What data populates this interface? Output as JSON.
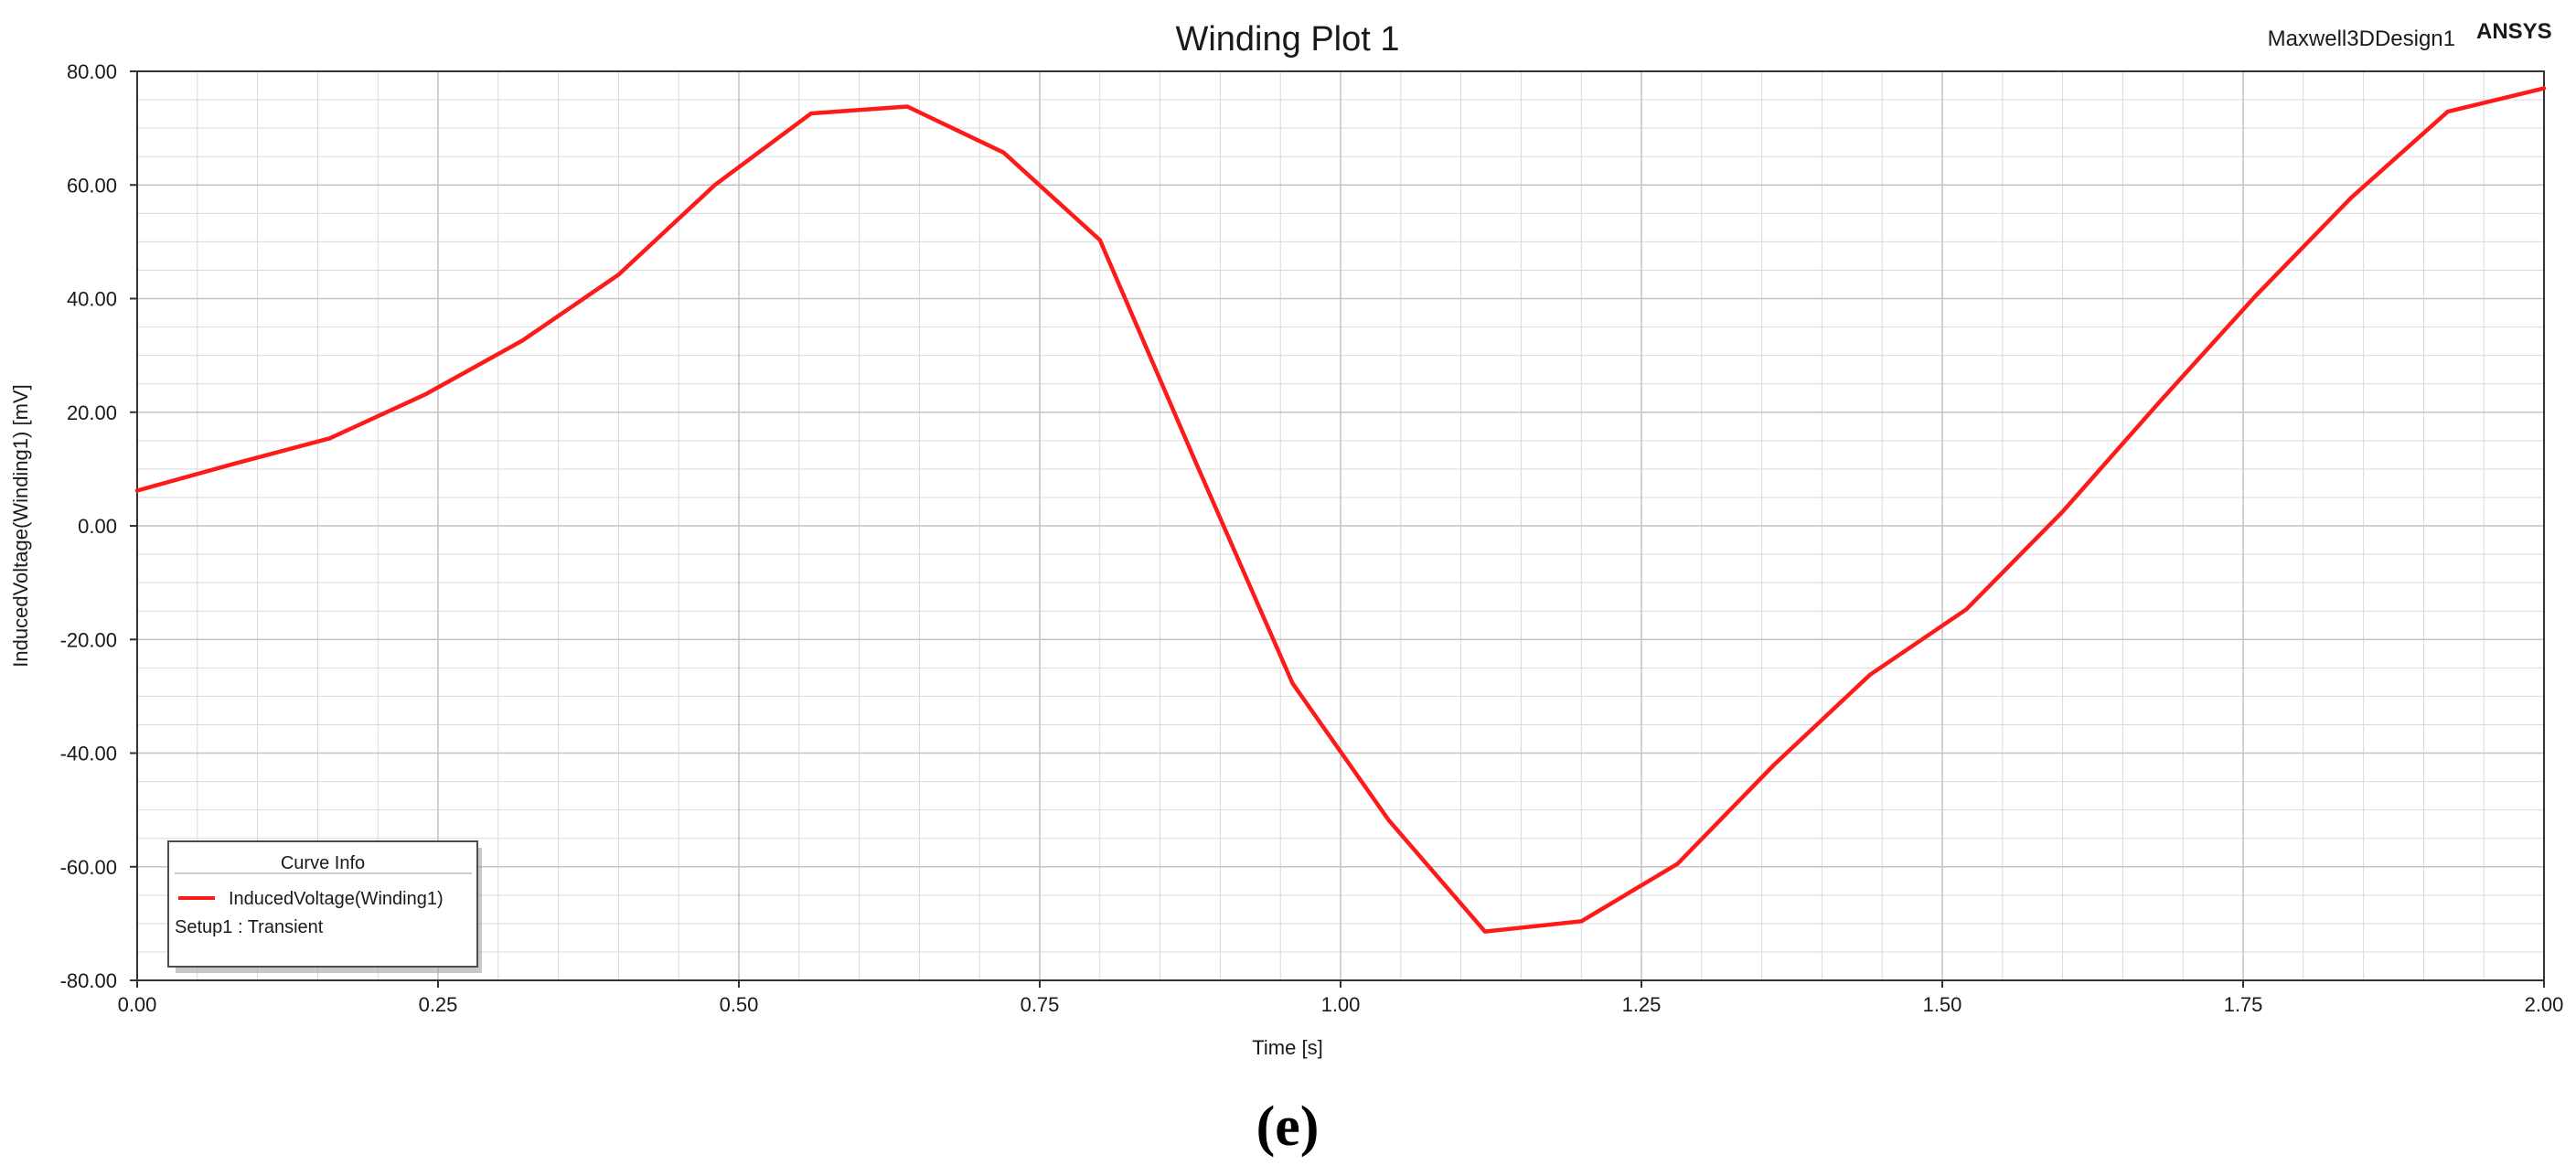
{
  "caption": "(e)",
  "header": {
    "design_name": "Maxwell3DDesign1",
    "brand": "ANSYS"
  },
  "legend": {
    "title": "Curve Info",
    "series_label": "InducedVoltage(Winding1)",
    "setup_label": "Setup1 : Transient"
  },
  "colors": {
    "series": "#ff1a1a",
    "grid": "#d9d9d9",
    "grid_major": "#c4c4c4",
    "axis": "#333333"
  },
  "chart_data": {
    "type": "line",
    "title": "Winding Plot 1",
    "xlabel": "Time [s]",
    "ylabel": "InducedVoltage(Winding1) [mV]",
    "xlim": [
      0,
      2
    ],
    "ylim": [
      -80,
      80
    ],
    "x_ticks": [
      "0.00",
      "0.25",
      "0.50",
      "0.75",
      "1.00",
      "1.25",
      "1.50",
      "1.75",
      "2.00"
    ],
    "x_tick_values": [
      0,
      0.25,
      0.5,
      0.75,
      1.0,
      1.25,
      1.5,
      1.75,
      2.0
    ],
    "y_ticks": [
      "80.00",
      "60.00",
      "40.00",
      "20.00",
      "0.00",
      "-20.00",
      "-40.00",
      "-60.00",
      "-80.00"
    ],
    "y_tick_values": [
      80,
      60,
      40,
      20,
      0,
      -20,
      -40,
      -60,
      -80
    ],
    "grid": true,
    "legend_position": "bottom-left",
    "series": [
      {
        "name": "InducedVoltage(Winding1)",
        "x": [
          0.0,
          0.08,
          0.16,
          0.24,
          0.32,
          0.4,
          0.48,
          0.56,
          0.64,
          0.72,
          0.8,
          0.88,
          0.96,
          1.04,
          1.12,
          1.2,
          1.28,
          1.36,
          1.44,
          1.52,
          1.6,
          1.68,
          1.76,
          1.84,
          1.92,
          2.0
        ],
        "y": [
          6.2,
          10.9,
          15.4,
          23.2,
          32.6,
          44.2,
          60.0,
          72.6,
          73.8,
          65.7,
          50.3,
          11.0,
          -27.7,
          -51.8,
          -71.4,
          -69.6,
          -59.5,
          -42.1,
          -26.2,
          -14.7,
          2.5,
          21.7,
          40.4,
          57.8,
          72.9,
          77.0
        ]
      }
    ]
  }
}
